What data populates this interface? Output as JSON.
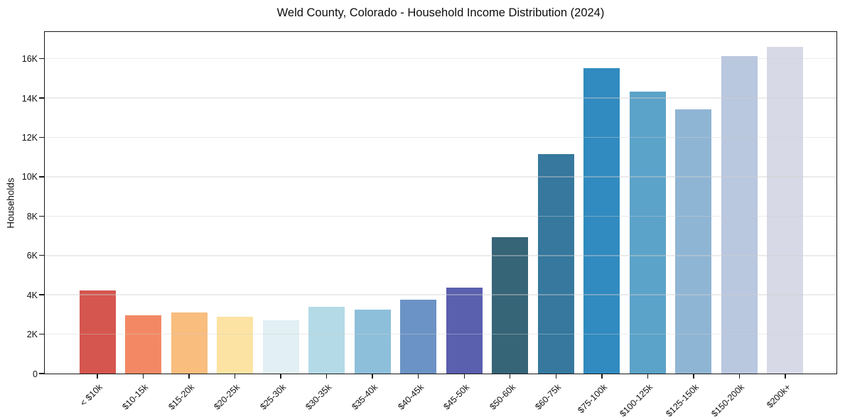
{
  "title": "Weld County, Colorado - Household Income Distribution (2024)",
  "chart_data": {
    "type": "bar",
    "title": "Weld County, Colorado - Household Income Distribution (2024)",
    "xlabel": "",
    "ylabel": "Households",
    "categories": [
      "< $10k",
      "$10-15k",
      "$15-20k",
      "$20-25k",
      "$25-30k",
      "$30-35k",
      "$35-40k",
      "$40-45k",
      "$45-50k",
      "$50-60k",
      "$60-75k",
      "$75-100k",
      "$100-125k",
      "$125-150k",
      "$150-200k",
      "$200k+"
    ],
    "values": [
      4200,
      2930,
      3100,
      2890,
      2700,
      3390,
      3220,
      3730,
      4360,
      6900,
      11100,
      15440,
      14260,
      13360,
      16080,
      16520
    ],
    "bar_colors": [
      "#d5564e",
      "#f38964",
      "#f9bd7e",
      "#fce3a3",
      "#e2eff4",
      "#b3dae6",
      "#8dbfdb",
      "#6b93c5",
      "#5a5fae",
      "#366577",
      "#36789e",
      "#318bc0",
      "#5ba3c9",
      "#8fb5d4",
      "#b9c7df",
      "#d7d9e7"
    ],
    "ylim": [
      0,
      17360
    ],
    "y_tick_values": [
      0,
      2000,
      4000,
      6000,
      8000,
      10000,
      12000,
      14000,
      16000
    ],
    "y_tick_labels": [
      "0",
      "2K",
      "4K",
      "6K",
      "8K",
      "10K",
      "12K",
      "14K",
      "16K"
    ],
    "grid": true,
    "grid_axis": "y",
    "legend": "none",
    "spine_color": "#1a1a1a",
    "background": "#ffffff"
  }
}
